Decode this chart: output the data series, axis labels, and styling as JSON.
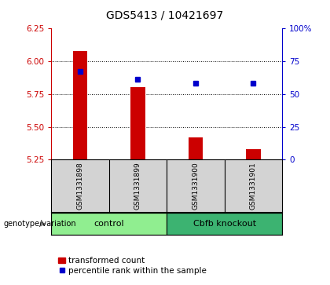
{
  "title": "GDS5413 / 10421697",
  "samples": [
    "GSM1331898",
    "GSM1331899",
    "GSM1331900",
    "GSM1331901"
  ],
  "red_values": [
    6.08,
    5.8,
    5.42,
    5.33
  ],
  "blue_values": [
    5.925,
    5.865,
    5.835,
    5.835
  ],
  "y_min": 5.25,
  "y_max": 6.25,
  "y_ticks_left": [
    5.25,
    5.5,
    5.75,
    6.0,
    6.25
  ],
  "y_ticks_right_pct": [
    0,
    25,
    50,
    75,
    100
  ],
  "grid_values": [
    6.0,
    5.75,
    5.5
  ],
  "groups": [
    {
      "label": "control",
      "samples": [
        0,
        1
      ],
      "color": "#90EE90"
    },
    {
      "label": "Cbfb knockout",
      "samples": [
        2,
        3
      ],
      "color": "#3CB371"
    }
  ],
  "red_color": "#CC0000",
  "blue_color": "#0000CC",
  "bar_baseline": 5.25,
  "title_fontsize": 10,
  "tick_fontsize": 7.5,
  "legend_fontsize": 7.5,
  "sample_label_fontsize": 6.5,
  "group_label_fontsize": 8,
  "gray_box_color": "#D3D3D3",
  "green_light": "#90EE90",
  "green_dark": "#3CB371",
  "bar_width": 0.25
}
